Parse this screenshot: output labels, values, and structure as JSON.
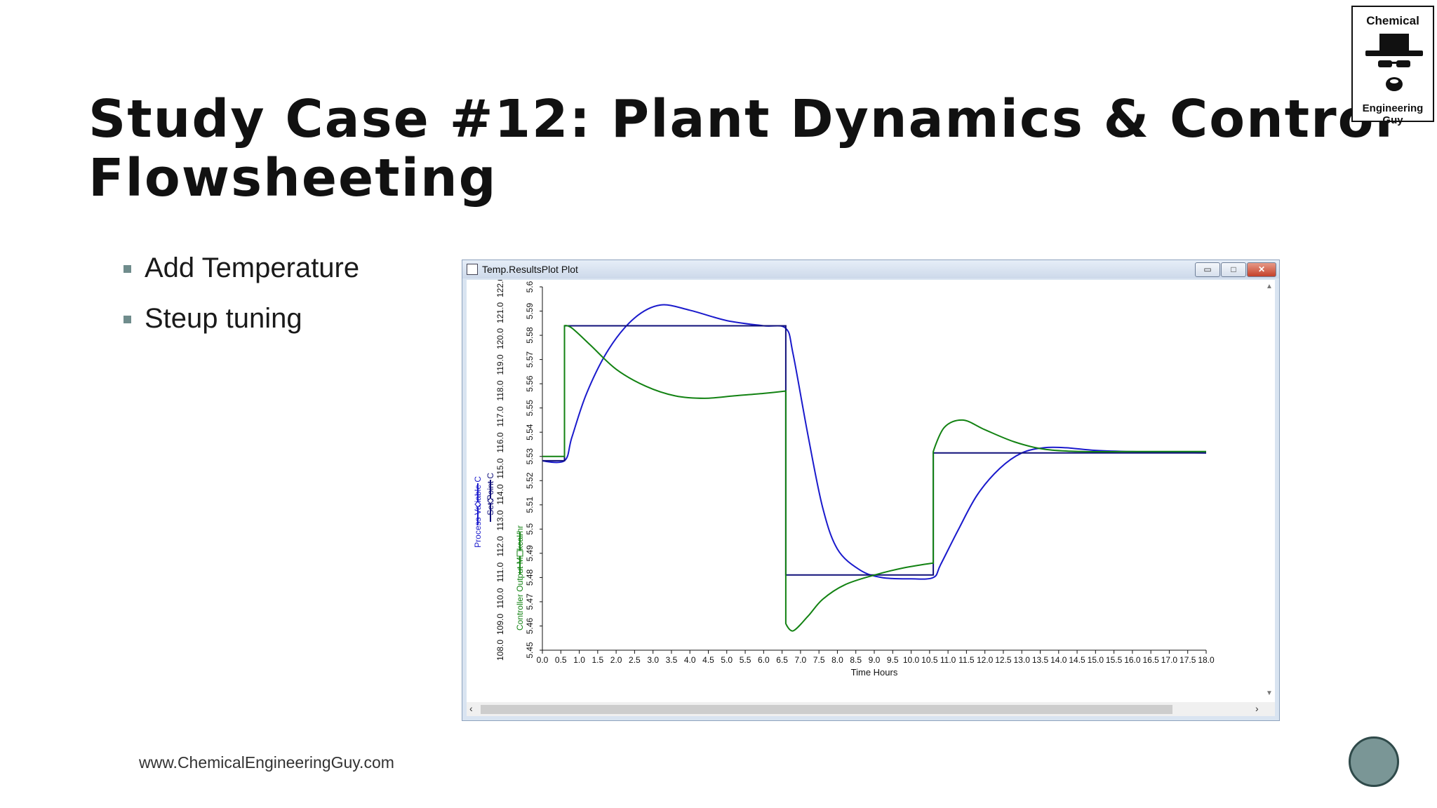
{
  "slide": {
    "title_line1": "Study Case #12: Plant Dynamics & Control",
    "title_line2": "Flowsheeting",
    "bullets": [
      "Add Temperature",
      "Steup tuning"
    ],
    "footer_url": "www.ChemicalEngineeringGuy.com",
    "logo": {
      "line1": "Chemical",
      "line2": "Engineering Guy"
    }
  },
  "window": {
    "title": "Temp.ResultsPlot Plot",
    "buttons": {
      "minimize": "▭",
      "maximize": "□",
      "close": "✕"
    }
  },
  "chart_data": {
    "type": "line",
    "xlabel": "Time Hours",
    "ylabels": [
      "Process Variable C",
      "Set Point C",
      "Controller Output MMkcal/hr"
    ],
    "x_ticks": [
      "0.0",
      "0.5",
      "1.0",
      "1.5",
      "2.0",
      "2.5",
      "3.0",
      "3.5",
      "4.0",
      "4.5",
      "5.0",
      "5.5",
      "6.0",
      "6.5",
      "7.0",
      "7.5",
      "8.0",
      "8.5",
      "9.0",
      "9.5",
      "10.0",
      "10.5",
      "11.0",
      "11.5",
      "12.0",
      "12.5",
      "13.0",
      "13.5",
      "14.0",
      "14.5",
      "15.0",
      "15.5",
      "16.0",
      "16.5",
      "17.0",
      "17.5",
      "18.0"
    ],
    "y_ticks_temp": [
      "108.0",
      "109.0",
      "110.0",
      "111.0",
      "112.0",
      "113.0",
      "114.0",
      "115.0",
      "116.0",
      "117.0",
      "118.0",
      "119.0",
      "120.0",
      "121.0",
      "122.0"
    ],
    "y_ticks_output": [
      "5.45",
      "5.46",
      "5.47",
      "5.48",
      "5.49",
      "5.5",
      "5.51",
      "5.52",
      "5.53",
      "5.54",
      "5.55",
      "5.56",
      "5.57",
      "5.58",
      "5.59",
      "5.6"
    ],
    "xlim": [
      0,
      18
    ],
    "ylim_temp": [
      108,
      122
    ],
    "ylim_output": [
      5.45,
      5.6
    ],
    "colors": {
      "pv": "#1a1acc",
      "sp": "#10107a",
      "op": "#128212"
    },
    "series": [
      {
        "name": "Process Variable C",
        "x": [
          0,
          0.6,
          0.8,
          1.2,
          1.8,
          2.5,
          3.2,
          4.0,
          5.0,
          6.0,
          6.6,
          6.8,
          7.2,
          7.6,
          8.0,
          8.6,
          9.2,
          10.0,
          10.6,
          10.8,
          11.3,
          11.8,
          12.4,
          13.0,
          13.6,
          14.2,
          15.0,
          16.0,
          18.0
        ],
        "y": [
          115.3,
          115.3,
          116.2,
          117.9,
          119.6,
          120.8,
          121.3,
          121.1,
          120.7,
          120.5,
          120.4,
          119.4,
          116.3,
          113.5,
          111.9,
          111.1,
          110.8,
          110.75,
          110.8,
          111.3,
          112.7,
          114.0,
          115.0,
          115.6,
          115.8,
          115.8,
          115.7,
          115.65,
          115.6
        ]
      },
      {
        "name": "Set Point C",
        "x": [
          0,
          0.6,
          0.6,
          6.6,
          6.6,
          10.6,
          10.6,
          18.0
        ],
        "y": [
          115.3,
          115.3,
          120.5,
          120.5,
          110.9,
          110.9,
          115.6,
          115.6
        ]
      },
      {
        "name": "Controller Output MMkcal/hr",
        "x": [
          0,
          0.6,
          0.6,
          0.8,
          1.3,
          2.0,
          2.8,
          3.6,
          4.4,
          5.2,
          6.0,
          6.6,
          6.6,
          6.8,
          7.2,
          7.6,
          8.2,
          9.0,
          9.8,
          10.6,
          10.6,
          10.9,
          11.4,
          12.0,
          12.8,
          13.6,
          14.6,
          16.0,
          18.0
        ],
        "y": [
          5.53,
          5.53,
          5.584,
          5.583,
          5.576,
          5.566,
          5.559,
          5.555,
          5.554,
          5.555,
          5.556,
          5.557,
          5.461,
          5.458,
          5.464,
          5.471,
          5.477,
          5.481,
          5.484,
          5.486,
          5.532,
          5.542,
          5.545,
          5.541,
          5.536,
          5.533,
          5.532,
          5.532,
          5.532
        ]
      }
    ]
  }
}
